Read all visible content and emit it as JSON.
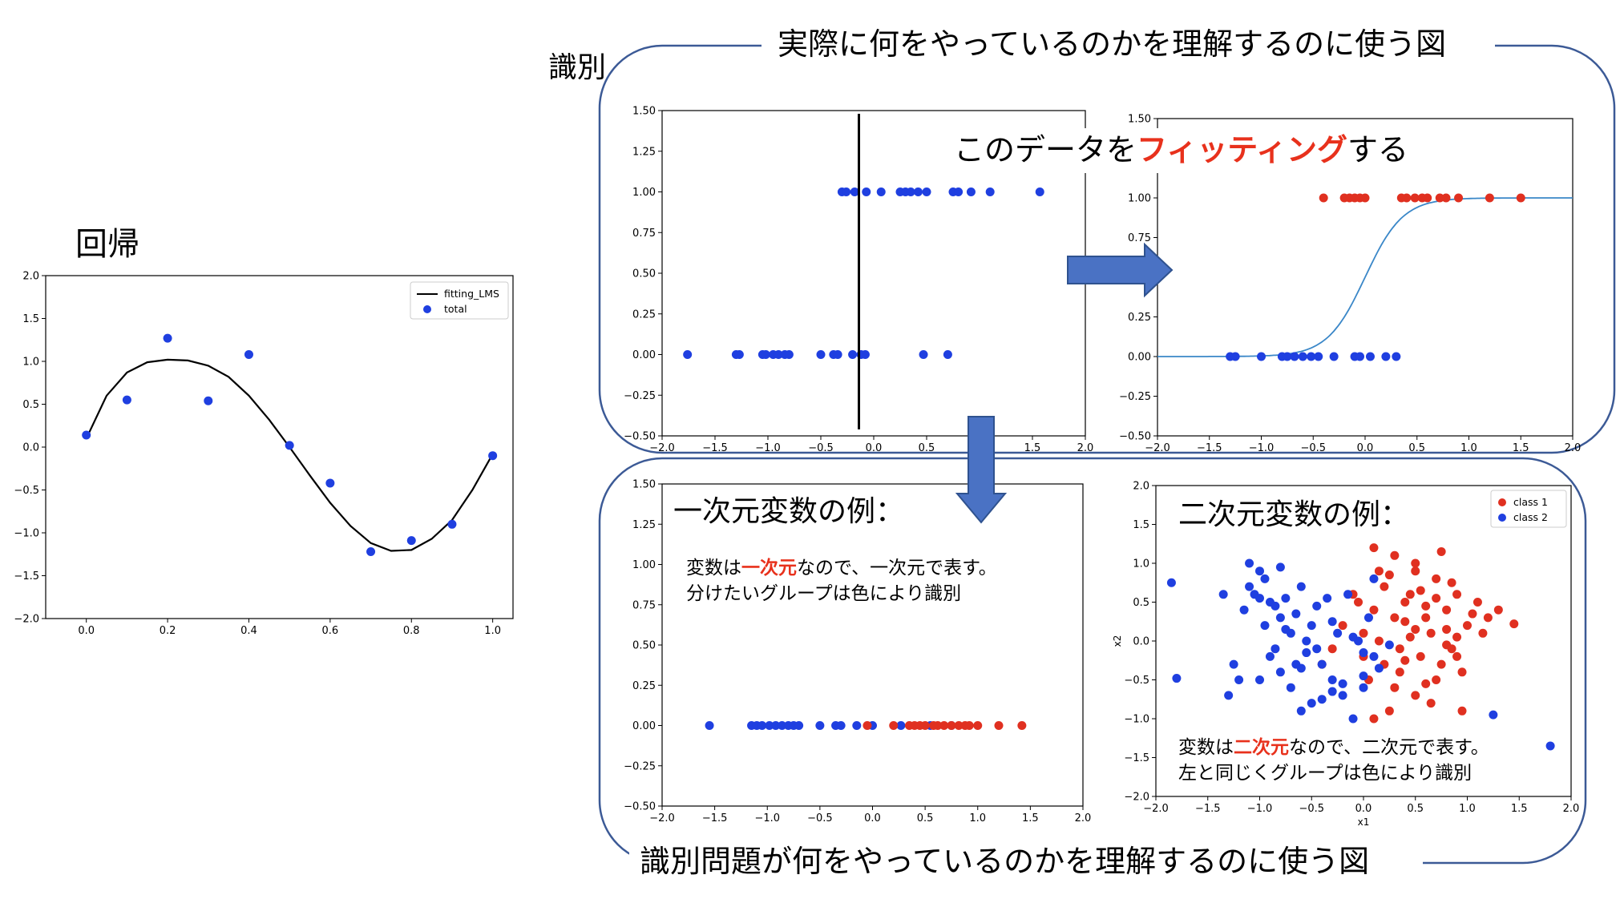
{
  "labels": {
    "regression": "回帰",
    "classification": "識別",
    "top_caption": "実際に何をやっているのかを理解するのに使う図",
    "bottom_caption": "識別問題が何をやっているのかを理解するのに使う図",
    "fitting_pre": "このデータを",
    "fitting_em": "フィッティング",
    "fitting_post": "する",
    "one_dim_heading": "一次元変数の例：",
    "one_dim_line1_pre": "変数は",
    "one_dim_line1_em": "一次元",
    "one_dim_line1_post": "なので、一次元で表す。",
    "one_dim_line2": "分けたいグループは色により識別",
    "two_dim_heading": "二次元変数の例：",
    "two_dim_line1_pre": "変数は",
    "two_dim_line1_em": "二次元",
    "two_dim_line1_post": "なので、二次元で表す。",
    "two_dim_line2": "左と同じくグループは色により識別"
  },
  "colors": {
    "blue": "#1f3fe0",
    "red": "#e03020",
    "accent_red": "#e8311c",
    "panel_border": "#3c5a96",
    "arrow_fill": "#4a72c4",
    "arrow_stroke": "#2f528f",
    "sigmoid": "#3a87c8"
  },
  "chart_data": [
    {
      "id": "regression",
      "type": "scatter",
      "xlim": [
        -0.1,
        1.05
      ],
      "ylim": [
        -2.0,
        2.0
      ],
      "xticks": [
        "0.0",
        "0.2",
        "0.4",
        "0.6",
        "0.8",
        "1.0"
      ],
      "xtick_values": [
        0.0,
        0.2,
        0.4,
        0.6,
        0.8,
        1.0
      ],
      "yticks": [
        "2.0",
        "1.5",
        "1.0",
        "0.5",
        "0.0",
        "−0.5",
        "−1.0",
        "−1.5",
        "−2.0"
      ],
      "ytick_values": [
        2.0,
        1.5,
        1.0,
        0.5,
        0.0,
        -0.5,
        -1.0,
        -1.5,
        -2.0
      ],
      "legend": {
        "placement": "top-right",
        "entries": [
          "fitting_LMS",
          "total"
        ]
      },
      "series": [
        {
          "name": "fitting_LMS",
          "kind": "line",
          "color": "#000000",
          "x": [
            0.0,
            0.05,
            0.1,
            0.15,
            0.2,
            0.25,
            0.3,
            0.35,
            0.4,
            0.45,
            0.5,
            0.55,
            0.6,
            0.65,
            0.7,
            0.75,
            0.8,
            0.85,
            0.9,
            0.95,
            1.0
          ],
          "y": [
            0.1,
            0.6,
            0.87,
            0.99,
            1.02,
            1.01,
            0.95,
            0.82,
            0.6,
            0.32,
            0.0,
            -0.33,
            -0.65,
            -0.92,
            -1.12,
            -1.21,
            -1.2,
            -1.07,
            -0.85,
            -0.5,
            -0.08
          ]
        },
        {
          "name": "total",
          "kind": "scatter",
          "color": "#1f3fe0",
          "x": [
            0.0,
            0.1,
            0.2,
            0.3,
            0.4,
            0.5,
            0.6,
            0.7,
            0.8,
            0.9,
            1.0
          ],
          "y": [
            0.14,
            0.55,
            1.27,
            0.54,
            1.08,
            0.02,
            -0.42,
            -1.22,
            -1.09,
            -0.9,
            -0.1
          ]
        }
      ]
    },
    {
      "id": "binary_raw",
      "type": "scatter",
      "xlim": [
        -2.0,
        2.0
      ],
      "ylim": [
        -0.5,
        1.5
      ],
      "xticks": [
        "−2.0",
        "−1.5",
        "−1.0",
        "−0.5",
        "0.0",
        "0.5",
        "1.0",
        "1.5",
        "2.0"
      ],
      "xtick_values": [
        -2.0,
        -1.5,
        -1.0,
        -0.5,
        0.0,
        0.5,
        1.0,
        1.5,
        2.0
      ],
      "yticks": [
        "1.50",
        "1.25",
        "1.00",
        "0.75",
        "0.50",
        "0.25",
        "0.00",
        "−0.25",
        "−0.50"
      ],
      "ytick_values": [
        1.5,
        1.25,
        1.0,
        0.75,
        0.5,
        0.25,
        0.0,
        -0.25,
        -0.5
      ],
      "vline_x": -0.14,
      "vline_y": [
        -0.46,
        1.48
      ],
      "series": [
        {
          "color": "#1f3fe0",
          "x": [
            -1.76,
            -1.3,
            -1.27,
            -1.05,
            -1.02,
            -0.95,
            -0.9,
            -0.84,
            -0.8,
            -0.5,
            -0.38,
            -0.34,
            -0.2,
            -0.12,
            -0.08,
            -0.3,
            -0.26,
            -0.18,
            -0.07,
            0.07,
            0.25,
            0.3,
            0.35,
            0.42,
            0.5,
            0.75,
            0.8,
            0.92,
            1.1,
            1.57,
            0.47,
            0.7
          ],
          "y": [
            0,
            0,
            0,
            0,
            0,
            0,
            0,
            0,
            0,
            0,
            0,
            0,
            0,
            0,
            0,
            1,
            1,
            1,
            1,
            1,
            1,
            1,
            1,
            1,
            1,
            1,
            1,
            1,
            1,
            1,
            0,
            0
          ]
        }
      ]
    },
    {
      "id": "binary_fit",
      "type": "scatter",
      "xlim": [
        -2.0,
        2.0
      ],
      "ylim": [
        -0.5,
        1.5
      ],
      "xticks": [
        "−2.0",
        "−1.5",
        "−1.0",
        "−0.5",
        "0.0",
        "0.5",
        "1.0",
        "1.5",
        "2.0"
      ],
      "xtick_values": [
        -2.0,
        -1.5,
        -1.0,
        -0.5,
        0.0,
        0.5,
        1.0,
        1.5,
        2.0
      ],
      "yticks": [
        "1.50",
        "1.25",
        "1.00",
        "0.75",
        "0.50",
        "0.25",
        "0.00",
        "−0.25",
        "−0.50"
      ],
      "ytick_values": [
        1.5,
        1.25,
        1.0,
        0.75,
        0.5,
        0.25,
        0.0,
        -0.25,
        -0.5
      ],
      "sigmoid_scale": 5.5,
      "series": [
        {
          "color": "#1f3fe0",
          "x": [
            -1.3,
            -1.25,
            -1.0,
            -0.8,
            -0.75,
            -0.68,
            -0.6,
            -0.52,
            -0.45,
            -0.3,
            -0.1,
            -0.05,
            0.05,
            0.2,
            0.3
          ],
          "y": [
            0,
            0,
            0,
            0,
            0,
            0,
            0,
            0,
            0,
            0,
            0,
            0,
            0,
            0,
            0
          ]
        },
        {
          "color": "#e03020",
          "x": [
            -0.4,
            -0.2,
            -0.15,
            -0.1,
            -0.05,
            0.0,
            0.35,
            0.4,
            0.48,
            0.55,
            0.6,
            0.72,
            0.78,
            0.9,
            1.2,
            1.5
          ],
          "y": [
            1,
            1,
            1,
            1,
            1,
            1,
            1,
            1,
            1,
            1,
            1,
            1,
            1,
            1,
            1,
            1
          ]
        }
      ]
    },
    {
      "id": "one_dim",
      "type": "scatter",
      "xlim": [
        -2.0,
        2.0
      ],
      "ylim": [
        -0.5,
        1.5
      ],
      "xticks": [
        "−2.0",
        "−1.5",
        "−1.0",
        "−0.5",
        "0.0",
        "0.5",
        "1.0",
        "1.5",
        "2.0"
      ],
      "xtick_values": [
        -2.0,
        -1.5,
        -1.0,
        -0.5,
        0.0,
        0.5,
        1.0,
        1.5,
        2.0
      ],
      "yticks": [
        "1.50",
        "1.25",
        "1.00",
        "0.75",
        "0.50",
        "0.25",
        "0.00",
        "−0.25",
        "−0.50"
      ],
      "ytick_values": [
        1.5,
        1.25,
        1.0,
        0.75,
        0.5,
        0.25,
        0.0,
        -0.25,
        -0.5
      ],
      "series": [
        {
          "color": "#1f3fe0",
          "x": [
            -1.55,
            -1.15,
            -1.1,
            -1.05,
            -0.98,
            -0.92,
            -0.86,
            -0.8,
            -0.75,
            -0.7,
            -0.5,
            -0.35,
            -0.3,
            -0.15,
            0.0,
            0.27,
            0.55,
            0.75
          ],
          "y": [
            0,
            0,
            0,
            0,
            0,
            0,
            0,
            0,
            0,
            0,
            0,
            0,
            0,
            0,
            0,
            0,
            0,
            0
          ]
        },
        {
          "color": "#e03020",
          "x": [
            -0.05,
            0.2,
            0.35,
            0.4,
            0.45,
            0.5,
            0.58,
            0.62,
            0.68,
            0.75,
            0.82,
            0.88,
            0.92,
            1.0,
            1.2,
            1.42
          ],
          "y": [
            0,
            0,
            0,
            0,
            0,
            0,
            0,
            0,
            0,
            0,
            0,
            0,
            0,
            0,
            0,
            0
          ]
        }
      ]
    },
    {
      "id": "two_dim",
      "type": "scatter",
      "xlim": [
        -2.0,
        2.0
      ],
      "ylim": [
        -2.0,
        2.0
      ],
      "xlabel": "x1",
      "ylabel": "x2",
      "xticks": [
        "−2.0",
        "−1.5",
        "−1.0",
        "−0.5",
        "0.0",
        "0.5",
        "1.0",
        "1.5",
        "2.0"
      ],
      "xtick_values": [
        -2.0,
        -1.5,
        -1.0,
        -0.5,
        0.0,
        0.5,
        1.0,
        1.5,
        2.0
      ],
      "yticks": [
        "2.0",
        "1.5",
        "1.0",
        "0.5",
        "0.0",
        "−0.5",
        "−1.0",
        "−1.5",
        "−2.0"
      ],
      "ytick_values": [
        2.0,
        1.5,
        1.0,
        0.5,
        0.0,
        -0.5,
        -1.0,
        -1.5,
        -2.0
      ],
      "legend": {
        "placement": "top-right",
        "entries": [
          "class 1",
          "class 2"
        ]
      },
      "series": [
        {
          "name": "class 1",
          "color": "#e03020",
          "x": [
            0.1,
            0.3,
            0.5,
            0.7,
            0.9,
            0.2,
            0.4,
            0.6,
            0.8,
            1.0,
            0.0,
            0.15,
            0.35,
            0.55,
            0.75,
            0.95,
            1.1,
            -0.1,
            0.25,
            0.45,
            0.65,
            0.85,
            0.05,
            0.3,
            0.5,
            0.7,
            0.9,
            1.2,
            -0.2,
            0.1,
            0.4,
            0.6,
            0.8,
            1.05,
            1.3,
            0.2,
            0.5,
            0.75,
            -0.3,
            0.0,
            0.35,
            0.65,
            0.95,
            1.45,
            0.55,
            0.15,
            -0.05,
            0.45,
            0.85,
            1.15,
            0.25,
            0.6,
            0.3,
            0.7,
            -0.4,
            0.1,
            0.5,
            0.9,
            0.4,
            0.8
          ],
          "y": [
            1.2,
            1.1,
            0.9,
            0.8,
            0.6,
            0.7,
            0.5,
            0.3,
            0.4,
            0.2,
            0.1,
            0.0,
            -0.1,
            -0.2,
            -0.3,
            -0.4,
            0.5,
            0.6,
            0.85,
            0.6,
            0.1,
            -0.1,
            -0.5,
            -0.6,
            -0.7,
            -0.5,
            -0.2,
            0.3,
            0.2,
            0.4,
            0.25,
            0.45,
            0.15,
            0.35,
            0.4,
            -0.3,
            1.0,
            1.15,
            -0.1,
            -0.2,
            -0.4,
            -0.8,
            -0.9,
            0.22,
            0.65,
            0.9,
            0.5,
            0.05,
            0.75,
            0.1,
            -0.9,
            -0.55,
            0.3,
            0.55,
            -0.3,
            -1.0,
            0.15,
            0.05,
            -0.25,
            -0.05
          ]
        },
        {
          "name": "class 2",
          "color": "#1f3fe0",
          "x": [
            -1.85,
            -1.8,
            -1.35,
            -1.3,
            -1.2,
            -1.1,
            -1.0,
            -0.9,
            -0.8,
            -0.7,
            -0.6,
            -0.5,
            -1.15,
            -1.05,
            -0.95,
            -0.85,
            -0.75,
            -0.65,
            -0.55,
            -0.45,
            -1.0,
            -0.9,
            -0.8,
            -0.7,
            -0.6,
            -0.5,
            -0.4,
            -0.3,
            -0.2,
            -0.1,
            0.0,
            0.1,
            -1.1,
            -0.95,
            -0.75,
            -0.55,
            -0.35,
            -0.15,
            0.05,
            -0.25,
            -0.05,
            0.15,
            -1.25,
            -0.85,
            -0.45,
            0.25,
            -0.65,
            -0.3,
            -0.1,
            0.0,
            1.25,
            1.8,
            -0.2,
            0.1,
            -0.6,
            -0.4,
            -1.0,
            -0.8,
            -0.3,
            0.0
          ],
          "y": [
            0.75,
            -0.48,
            0.6,
            -0.7,
            -0.5,
            1.0,
            0.9,
            0.5,
            0.3,
            0.1,
            0.7,
            0.2,
            0.4,
            0.6,
            0.2,
            -0.1,
            0.55,
            -0.3,
            0.0,
            0.45,
            -0.5,
            -0.2,
            -0.4,
            -0.6,
            -0.9,
            -0.8,
            -0.3,
            -0.5,
            -0.7,
            -1.0,
            -0.45,
            -0.2,
            0.7,
            0.8,
            0.15,
            -0.15,
            0.55,
            0.6,
            0.3,
            0.1,
            0.0,
            -0.35,
            -0.3,
            0.45,
            -0.1,
            -0.05,
            0.35,
            0.25,
            0.05,
            -0.15,
            -0.95,
            -1.35,
            -0.55,
            0.8,
            -0.35,
            -0.75,
            0.55,
            0.95,
            -0.65,
            -0.6
          ]
        }
      ]
    }
  ]
}
